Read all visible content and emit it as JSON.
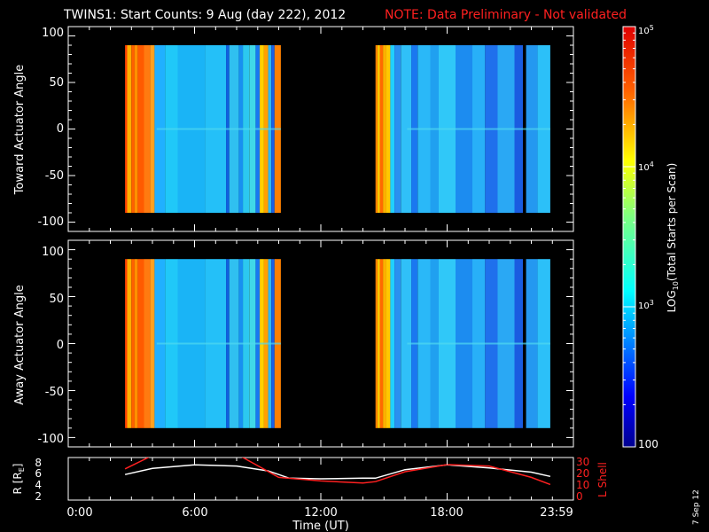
{
  "header": {
    "title": "TWINS1: Start Counts:  9 Aug (day 222), 2012",
    "note": "NOTE: Data Preliminary - Not validated",
    "note_color": "#ff2020"
  },
  "stamp": "7 Sep 12",
  "chart_data": [
    {
      "type": "heatmap",
      "title": "TWINS1: Start Counts:  9 Aug (day 222), 2012",
      "ylabel": "Toward Actuator Angle",
      "ylim": [
        -110,
        110
      ],
      "yticks": [
        "100",
        "50",
        "0",
        "-50",
        "-100"
      ],
      "data_hours": [
        [
          2.7,
          10.1
        ],
        [
          14.6,
          22.9
        ]
      ],
      "angle_range": [
        -90,
        90
      ]
    },
    {
      "type": "heatmap",
      "ylabel": "Away Actuator Angle",
      "ylim": [
        -110,
        110
      ],
      "yticks": [
        "100",
        "50",
        "0",
        "-50",
        "-100"
      ],
      "data_hours": [
        [
          2.7,
          10.1
        ],
        [
          14.6,
          22.9
        ]
      ],
      "angle_range": [
        -90,
        90
      ]
    },
    {
      "type": "line",
      "xlabel": "Time (UT)",
      "xlim": [
        0,
        24
      ],
      "xticks": [
        "0:00",
        "6:00",
        "12:00",
        "18:00",
        "23:59"
      ],
      "ylabel": "R [R",
      "ylabel_sub": "E",
      "ylabel_end": "]",
      "ylim_left": [
        1,
        8
      ],
      "yticks_left": [
        "8",
        "6",
        "4",
        "2"
      ],
      "ylabel_right": "L Shell",
      "ylim_right": [
        0,
        30
      ],
      "yticks_right": [
        "30",
        "20",
        "10",
        "0"
      ],
      "series": [
        {
          "axis": "left",
          "color": "#ffffff",
          "x": [
            2.7,
            4,
            6,
            8,
            9.5,
            10.5,
            12,
            14,
            14.6,
            16,
            18,
            20,
            22,
            22.9
          ],
          "y": [
            5.2,
            6.2,
            6.8,
            6.6,
            5.8,
            4.6,
            4.5,
            4.6,
            4.6,
            6,
            6.8,
            6.3,
            5.6,
            4.9
          ]
        },
        {
          "axis": "right",
          "color": "#ff2020",
          "x": [
            2.7,
            3.8,
            4.1,
            7.9,
            8.3,
            10,
            12,
            14,
            14.6,
            16,
            18,
            20,
            22,
            22.9
          ],
          "y": [
            22,
            30,
            33,
            33,
            30,
            16,
            13.5,
            12,
            13,
            20,
            25,
            24,
            16,
            11
          ]
        }
      ]
    }
  ],
  "colorbar": {
    "label": "LOG",
    "label_sub": "10",
    "label_end": "(Total Starts per Scan)",
    "ticks": [
      "10",
      "10",
      "10",
      "100"
    ],
    "tick_exps": [
      "5",
      "4",
      "3",
      ""
    ],
    "range": [
      100,
      100000
    ],
    "scale": "log"
  }
}
